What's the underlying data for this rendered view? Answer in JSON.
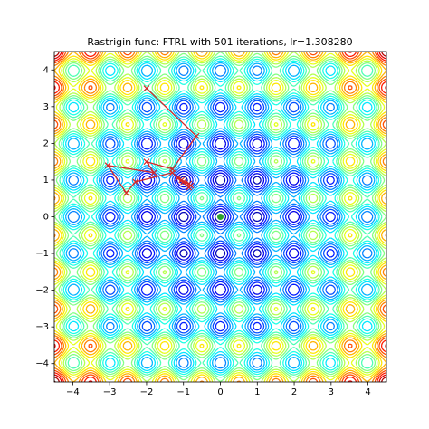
{
  "chart_data": {
    "type": "contour",
    "title": "Rastrigin func: FTRL with 501 iterations, lr=1.308280",
    "xlim": [
      -4.5,
      4.5
    ],
    "ylim": [
      -4.5,
      4.5
    ],
    "xticks": [
      {
        "value": -4,
        "label": "−4"
      },
      {
        "value": -3,
        "label": "−3"
      },
      {
        "value": -2,
        "label": "−2"
      },
      {
        "value": -1,
        "label": "−1"
      },
      0,
      1,
      2,
      3,
      4
    ],
    "yticks": [
      {
        "value": -4,
        "label": "−4"
      },
      {
        "value": -3,
        "label": "−3"
      },
      {
        "value": -2,
        "label": "−2"
      },
      {
        "value": -1,
        "label": "−1"
      },
      0,
      1,
      2,
      3,
      4
    ],
    "levels": [
      0,
      4,
      8,
      12,
      16,
      20,
      24,
      28,
      32,
      36,
      40,
      44,
      48,
      52,
      56,
      60,
      64,
      68,
      72,
      76,
      80
    ],
    "path": {
      "color": "#d62728",
      "x": [
        -2,
        -0.65,
        -1.3,
        -2.0,
        -1.8,
        -3.05,
        -2.55,
        -2.3,
        -1.3,
        -0.85,
        -1.15,
        -0.8,
        -1.05,
        -0.85,
        -1.0
      ],
      "y": [
        3.5,
        2.2,
        1.3,
        1.5,
        1.2,
        1.4,
        0.65,
        0.95,
        1.2,
        0.8,
        1.05,
        0.85,
        1.0,
        0.9,
        0.95
      ]
    },
    "minimum": {
      "color": "#2ca02c",
      "x": [
        0
      ],
      "y": [
        0
      ]
    }
  }
}
